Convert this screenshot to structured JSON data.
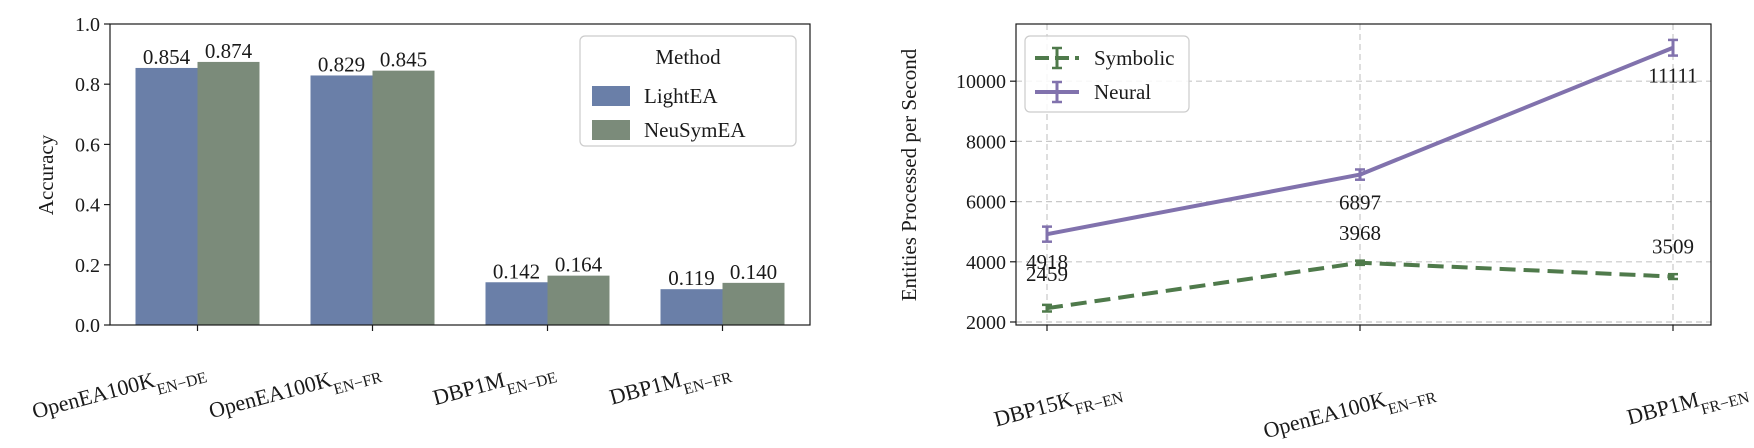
{
  "chart_data": [
    {
      "type": "bar",
      "xlabel": "",
      "ylabel": "Accuracy",
      "ylim": [
        0,
        1.0
      ],
      "yticks": [
        "0.0",
        "0.2",
        "0.4",
        "0.6",
        "0.8",
        "1.0"
      ],
      "grid": false,
      "categories": [
        {
          "base": "OpenEA100K",
          "sub": "EN−DE"
        },
        {
          "base": "OpenEA100K",
          "sub": "EN−FR"
        },
        {
          "base": "DBP1M",
          "sub": "EN−DE"
        },
        {
          "base": "DBP1M",
          "sub": "EN−FR"
        }
      ],
      "legend": {
        "title": "Method",
        "position": "top-right"
      },
      "series": [
        {
          "name": "LightEA",
          "color": "#6a7fa8",
          "values": [
            0.854,
            0.829,
            0.142,
            0.119
          ],
          "labels": [
            "0.854",
            "0.829",
            "0.142",
            "0.119"
          ]
        },
        {
          "name": "NeuSymEA",
          "color": "#7b8b7a",
          "values": [
            0.874,
            0.845,
            0.164,
            0.14
          ],
          "labels": [
            "0.874",
            "0.845",
            "0.164",
            "0.140"
          ]
        }
      ]
    },
    {
      "type": "line",
      "xlabel": "",
      "ylabel": "Entities Processed per Second",
      "ylim": [
        1900,
        11900
      ],
      "yticks": [
        "2000",
        "4000",
        "6000",
        "8000",
        "10000"
      ],
      "grid": true,
      "categories": [
        {
          "base": "DBP15K",
          "sub": "FR−EN"
        },
        {
          "base": "OpenEA100K",
          "sub": "EN−FR"
        },
        {
          "base": "DBP1M",
          "sub": "FR−EN"
        }
      ],
      "legend": {
        "position": "top-left"
      },
      "series": [
        {
          "name": "Symbolic",
          "color": "#4f7a4b",
          "style": "dashed",
          "values": [
            2459,
            3968,
            3509
          ],
          "errors": [
            110,
            70,
            80
          ],
          "labels": [
            "2459",
            "3968",
            "3509"
          ]
        },
        {
          "name": "Neural",
          "color": "#8172ad",
          "style": "solid",
          "values": [
            4918,
            6897,
            11111
          ],
          "errors": [
            250,
            170,
            260
          ],
          "labels": [
            "4918",
            "6897",
            "11111"
          ]
        }
      ]
    }
  ]
}
